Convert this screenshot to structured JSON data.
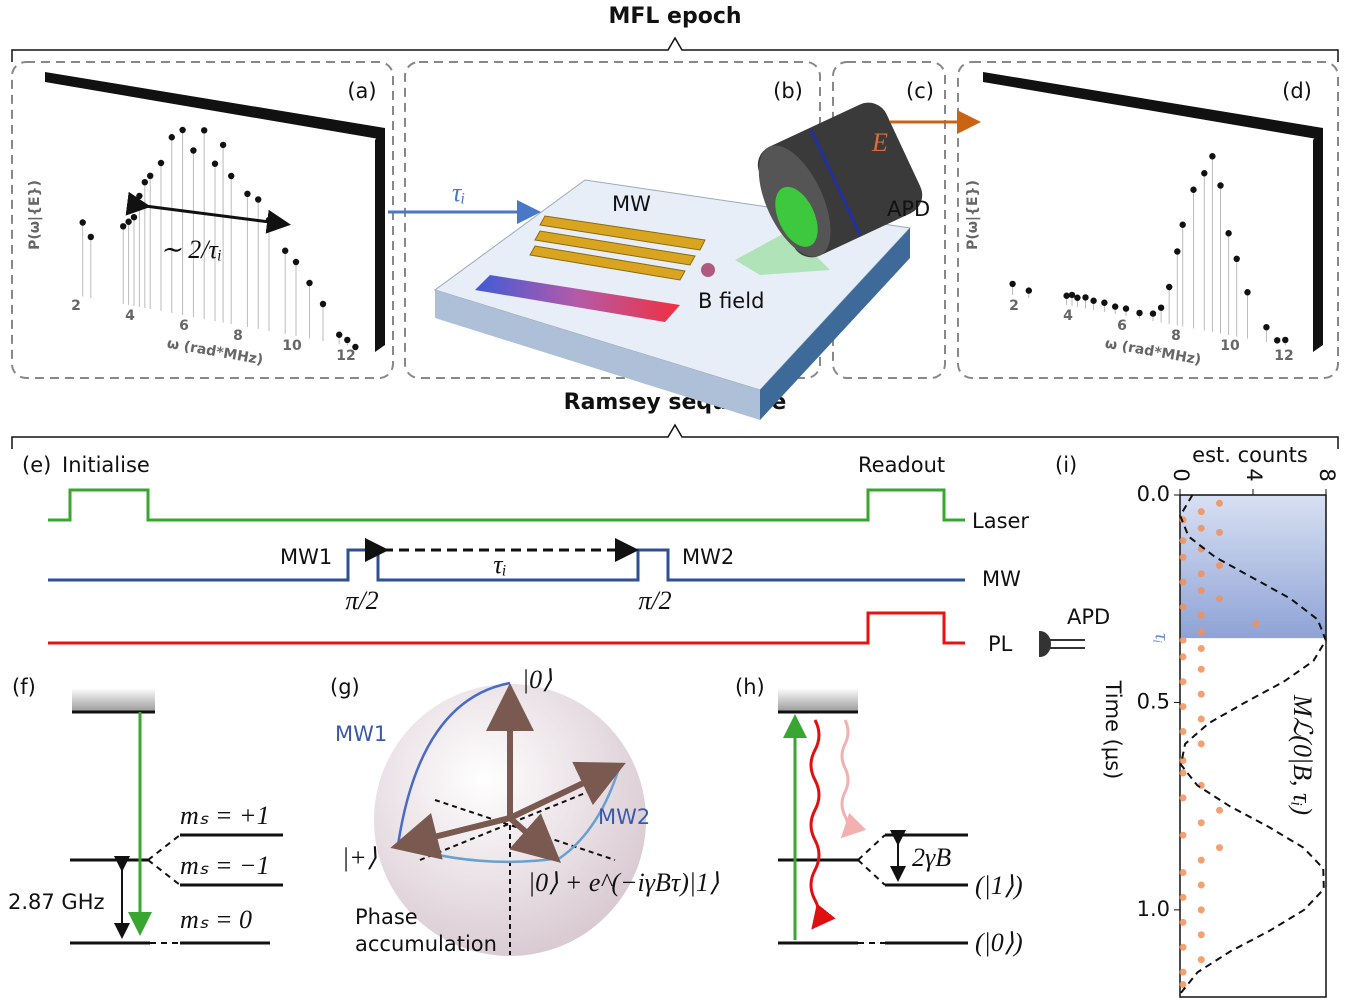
{
  "title": "MFL epoch",
  "panel_a": {
    "label": "(a)",
    "ylabel": "P(ω|{E})",
    "xlabel": "ω (rad*MHz)",
    "xticks": [
      2,
      4,
      6,
      8,
      10,
      12
    ],
    "annotation": "∼ 2/τᵢ",
    "points": {
      "x": [
        2.1,
        2.4,
        3.6,
        3.8,
        4.0,
        4.2,
        4.4,
        4.6,
        5.0,
        5.4,
        5.8,
        6.2,
        6.6,
        7.0,
        7.3,
        7.6,
        8.2,
        8.6,
        9.0,
        9.6,
        10.0,
        10.5,
        11.0,
        11.6,
        11.9,
        12.2
      ],
      "y": [
        0.4,
        0.33,
        0.42,
        0.45,
        0.48,
        0.6,
        0.68,
        0.72,
        0.8,
        0.95,
        1.0,
        0.9,
        1.02,
        0.85,
        0.96,
        0.8,
        0.72,
        0.7,
        0.6,
        0.45,
        0.4,
        0.3,
        0.2,
        0.05,
        0.03,
        0.0
      ]
    }
  },
  "panel_b": {
    "label": "(b)",
    "arrow_label": "τᵢ",
    "mw": "MW",
    "field": "B field"
  },
  "panel_c": {
    "label": "(c)",
    "signal": "E",
    "detector": "APD"
  },
  "panel_d": {
    "label": "(d)",
    "ylabel": "P(ω|{E})",
    "xlabel": "ω (rad*MHz)",
    "xticks": [
      2,
      4,
      6,
      8,
      10,
      12
    ],
    "points": {
      "x": [
        1.8,
        2.4,
        3.8,
        4.0,
        4.2,
        4.5,
        4.8,
        5.2,
        5.6,
        6.0,
        6.5,
        7.0,
        7.3,
        7.6,
        7.9,
        8.1,
        8.5,
        8.9,
        9.2,
        9.5,
        9.8,
        10.1,
        10.5,
        11.2,
        11.6,
        11.9
      ],
      "y": [
        0.06,
        0.04,
        0.05,
        0.06,
        0.05,
        0.06,
        0.05,
        0.05,
        0.04,
        0.04,
        0.03,
        0.04,
        0.08,
        0.2,
        0.4,
        0.55,
        0.75,
        0.85,
        0.95,
        0.8,
        0.55,
        0.42,
        0.25,
        0.08,
        0.02,
        0.03
      ]
    }
  },
  "ramsey_title": "Ramsey sequence",
  "panel_e": {
    "label": "(e)",
    "initialise": "Initialise",
    "readout": "Readout",
    "channels": [
      "Laser",
      "MW",
      "PL"
    ],
    "mw1": "MW1",
    "mw2": "MW2",
    "interval": "τᵢ",
    "pulse_labels": [
      "π/2",
      "π/2"
    ],
    "detector": "APD"
  },
  "panel_f": {
    "label": "(f)",
    "levels": [
      "mₛ = +1",
      "mₛ = −1",
      "mₛ = 0"
    ],
    "splitting": "2.87 GHz"
  },
  "panel_g": {
    "label": "(g)",
    "top_state": "|0⟩",
    "mw1": "MW1",
    "mw2": "MW2",
    "plus_state": "|+⟩",
    "final_state": "|0⟩ + e^(−iγBτ)|1⟩",
    "caption": [
      "Phase",
      "accumulation"
    ]
  },
  "panel_h": {
    "label": "(h)",
    "splitting": "2γB",
    "levels": [
      "(|1⟩)",
      "(|0⟩)"
    ]
  },
  "panel_i": {
    "label": "(i)",
    "xlabel": "est. counts",
    "ylabel": "Time (μs)",
    "xlim": [
      0,
      8
    ],
    "xticks": [
      0,
      4,
      8
    ],
    "ylim": [
      0,
      1.21
    ],
    "yticks": [
      {
        "value": 0,
        "label": "0.0"
      },
      0.5,
      {
        "value": 1,
        "label": "1.0"
      }
    ],
    "tau": {
      "value": 0.345,
      "label": "τᵢ"
    },
    "curve_label": "Mℒ(0|B, τᵢ)",
    "curve": {
      "t": [
        0,
        0.05,
        0.1,
        0.15,
        0.2,
        0.25,
        0.3,
        0.35,
        0.4,
        0.45,
        0.5,
        0.55,
        0.6,
        0.65,
        0.7,
        0.75,
        0.8,
        0.85,
        0.9,
        0.95,
        1.0,
        1.05,
        1.1,
        1.15,
        1.2
      ],
      "counts": [
        0.68,
        0.01,
        0.47,
        1.94,
        4.0,
        6.06,
        7.54,
        7.99,
        7.31,
        5.68,
        3.57,
        1.58,
        0.28,
        0.05,
        0.95,
        2.72,
        4.86,
        6.76,
        7.85,
        7.88,
        6.8,
        4.92,
        2.76,
        0.97,
        0.05
      ]
    },
    "samples": {
      "t": [
        0.02,
        0.04,
        0.06,
        0.08,
        0.09,
        0.11,
        0.13,
        0.15,
        0.17,
        0.19,
        0.21,
        0.23,
        0.25,
        0.27,
        0.29,
        0.31,
        0.33,
        0.35,
        0.37,
        0.39,
        0.42,
        0.45,
        0.48,
        0.51,
        0.54,
        0.57,
        0.6,
        0.64,
        0.67,
        0.7,
        0.73,
        0.76,
        0.79,
        0.82,
        0.85,
        0.88,
        0.91,
        0.94,
        0.97,
        1.0,
        1.03,
        1.06,
        1.09,
        1.12,
        1.15,
        1.18
      ],
      "counts": [
        2,
        1,
        0,
        1,
        2,
        0,
        1,
        0,
        2,
        1,
        0,
        1,
        2,
        0,
        1,
        4,
        1,
        0,
        1,
        0,
        1,
        0,
        1,
        0,
        1,
        0,
        1,
        0,
        0,
        1,
        0,
        2,
        1,
        0,
        2,
        1,
        0,
        1,
        0,
        1,
        0,
        1,
        0,
        1,
        0,
        0
      ]
    }
  }
}
